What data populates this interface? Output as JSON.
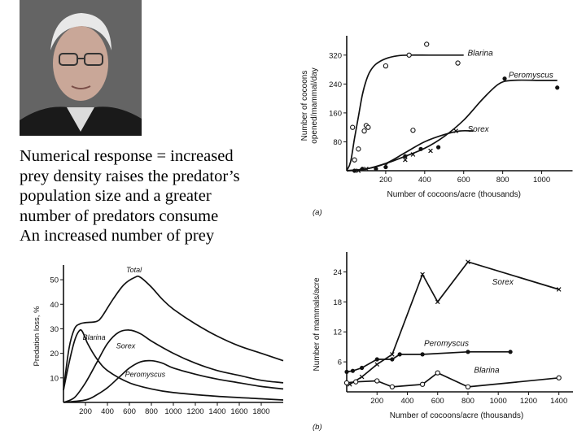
{
  "caption": {
    "lines": [
      "Numerical response = increased",
      "prey density raises the predator’s",
      "population size and a greater",
      "number of predators consume",
      "An increased number of prey"
    ]
  },
  "colors": {
    "ink": "#111111",
    "background": "#ffffff"
  },
  "chart_data": [
    {
      "id": "a",
      "panel_label": "(a)",
      "type": "line",
      "xlabel": "Number of cocoons/acre (thousands)",
      "ylabel": "Number of cocoons opened/mammal/day",
      "xticks": [
        200,
        400,
        600,
        800,
        1000
      ],
      "yticks": [
        80,
        160,
        240,
        320
      ],
      "xlim": [
        0,
        1100
      ],
      "ylim": [
        0,
        360
      ],
      "series": [
        {
          "name": "Blarina",
          "marker": "open-circle",
          "curve": [
            [
              0,
              0
            ],
            [
              20,
              25
            ],
            [
              40,
              90
            ],
            [
              60,
              150
            ],
            [
              80,
              210
            ],
            [
              100,
              250
            ],
            [
              120,
              275
            ],
            [
              150,
              295
            ],
            [
              200,
              310
            ],
            [
              260,
              318
            ],
            [
              330,
              320
            ],
            [
              420,
              320
            ],
            [
              520,
              320
            ],
            [
              600,
              320
            ]
          ],
          "points": [
            [
              30,
              120
            ],
            [
              40,
              30
            ],
            [
              60,
              60
            ],
            [
              90,
              110
            ],
            [
              100,
              125
            ],
            [
              110,
              120
            ],
            [
              200,
              290
            ],
            [
              320,
              320
            ],
            [
              340,
              112
            ],
            [
              410,
              350
            ],
            [
              570,
              298
            ]
          ]
        },
        {
          "name": "Peromyscus",
          "marker": "filled-circle",
          "curve": [
            [
              0,
              0
            ],
            [
              100,
              5
            ],
            [
              200,
              20
            ],
            [
              300,
              40
            ],
            [
              400,
              62
            ],
            [
              500,
              95
            ],
            [
              600,
              140
            ],
            [
              700,
              200
            ],
            [
              780,
              240
            ],
            [
              850,
              250
            ],
            [
              1000,
              250
            ],
            [
              1080,
              250
            ]
          ],
          "points": [
            [
              40,
              0
            ],
            [
              80,
              5
            ],
            [
              150,
              5
            ],
            [
              200,
              10
            ],
            [
              300,
              40
            ],
            [
              380,
              60
            ],
            [
              470,
              65
            ],
            [
              810,
              255
            ],
            [
              1080,
              230
            ]
          ]
        },
        {
          "name": "Sorex",
          "marker": "cross",
          "curve": [
            [
              0,
              0
            ],
            [
              100,
              5
            ],
            [
              200,
              20
            ],
            [
              300,
              50
            ],
            [
              400,
              80
            ],
            [
              500,
              100
            ],
            [
              580,
              110
            ],
            [
              650,
              110
            ]
          ],
          "points": [
            [
              60,
              0
            ],
            [
              100,
              5
            ],
            [
              200,
              15
            ],
            [
              300,
              30
            ],
            [
              340,
              45
            ],
            [
              430,
              55
            ],
            [
              560,
              110
            ]
          ]
        }
      ]
    },
    {
      "id": "b",
      "panel_label": "(b)",
      "type": "line",
      "xlabel": "Number of cocoons/acre (thousands)",
      "ylabel": "Number of mammals/acre",
      "xticks": [
        200,
        400,
        600,
        800,
        1000,
        1200,
        1400
      ],
      "yticks": [
        6,
        12,
        18,
        24
      ],
      "xlim": [
        0,
        1450
      ],
      "ylim": [
        0,
        27
      ],
      "series": [
        {
          "name": "Sorex",
          "marker": "cross",
          "points": [
            [
              20,
              1.5
            ],
            [
              100,
              3
            ],
            [
              200,
              5.5
            ],
            [
              300,
              7.5
            ],
            [
              500,
              23.5
            ],
            [
              600,
              18
            ],
            [
              800,
              26
            ],
            [
              1400,
              20.5
            ]
          ]
        },
        {
          "name": "Peromyscus",
          "marker": "filled-circle",
          "points": [
            [
              0,
              4
            ],
            [
              40,
              4.2
            ],
            [
              100,
              4.8
            ],
            [
              200,
              6.5
            ],
            [
              300,
              6.5
            ],
            [
              350,
              7.5
            ],
            [
              500,
              7.5
            ],
            [
              800,
              8
            ],
            [
              1080,
              8
            ]
          ]
        },
        {
          "name": "Blarina",
          "marker": "open-circle",
          "points": [
            [
              0,
              1.8
            ],
            [
              60,
              2
            ],
            [
              200,
              2.2
            ],
            [
              300,
              1
            ],
            [
              500,
              1.5
            ],
            [
              600,
              3.8
            ],
            [
              800,
              1
            ],
            [
              1400,
              2.8
            ]
          ]
        }
      ]
    },
    {
      "id": "c",
      "panel_label": "",
      "type": "line",
      "xlabel": "",
      "ylabel": "Predation loss, %",
      "xticks": [
        200,
        400,
        600,
        800,
        1000,
        1200,
        1400,
        1600,
        1800
      ],
      "yticks": [
        10,
        20,
        30,
        40,
        50
      ],
      "xlim": [
        0,
        2000
      ],
      "ylim": [
        0,
        54
      ],
      "series": [
        {
          "name": "Total",
          "curve": [
            [
              0,
              5
            ],
            [
              50,
              22
            ],
            [
              100,
              30
            ],
            [
              150,
              32
            ],
            [
              200,
              32.5
            ],
            [
              300,
              33
            ],
            [
              350,
              35
            ],
            [
              450,
              42
            ],
            [
              550,
              48
            ],
            [
              650,
              51
            ],
            [
              700,
              51
            ],
            [
              800,
              47
            ],
            [
              900,
              42
            ],
            [
              1000,
              38
            ],
            [
              1200,
              32
            ],
            [
              1400,
              27
            ],
            [
              1600,
              23
            ],
            [
              1800,
              20
            ],
            [
              2000,
              17
            ]
          ]
        },
        {
          "name": "Blarina",
          "curve": [
            [
              0,
              5
            ],
            [
              50,
              16
            ],
            [
              100,
              25
            ],
            [
              140,
              29
            ],
            [
              170,
              29
            ],
            [
              220,
              24
            ],
            [
              300,
              18
            ],
            [
              400,
              13
            ],
            [
              600,
              8
            ],
            [
              800,
              5.5
            ],
            [
              1000,
              4
            ],
            [
              1400,
              2.5
            ],
            [
              1800,
              1.5
            ],
            [
              2000,
              1
            ]
          ]
        },
        {
          "name": "Sorex",
          "curve": [
            [
              0,
              0
            ],
            [
              100,
              2
            ],
            [
              200,
              8
            ],
            [
              300,
              16
            ],
            [
              400,
              24
            ],
            [
              500,
              28.5
            ],
            [
              600,
              29.5
            ],
            [
              700,
              28
            ],
            [
              800,
              25
            ],
            [
              1000,
              20
            ],
            [
              1200,
              16
            ],
            [
              1400,
              13
            ],
            [
              1600,
              11
            ],
            [
              1800,
              9
            ],
            [
              2000,
              8
            ]
          ]
        },
        {
          "name": "Peromyscus",
          "curve": [
            [
              0,
              0
            ],
            [
              200,
              1
            ],
            [
              300,
              3
            ],
            [
              400,
              6
            ],
            [
              500,
              10
            ],
            [
              600,
              14
            ],
            [
              700,
              16.5
            ],
            [
              800,
              17
            ],
            [
              900,
              16
            ],
            [
              1000,
              14
            ],
            [
              1200,
              11.5
            ],
            [
              1400,
              9.5
            ],
            [
              1600,
              8
            ],
            [
              1800,
              6.5
            ],
            [
              2000,
              5.5
            ]
          ]
        }
      ]
    }
  ]
}
